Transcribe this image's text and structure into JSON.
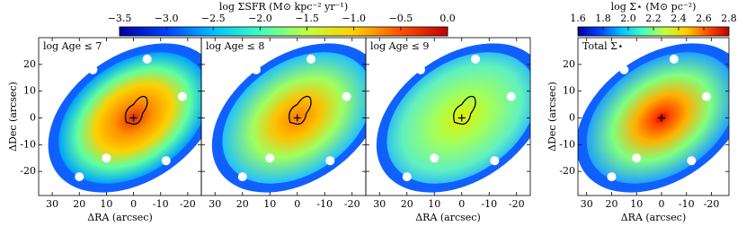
{
  "chart_data": [
    {
      "type": "colorbar",
      "label": "log ΣSFR (M⊙ kpc⁻² yr⁻¹)",
      "xlim": [
        -3.5,
        0.0
      ],
      "xticks": [
        {
          "value": -3.5,
          "label": "−3.5"
        },
        {
          "value": -3.0,
          "label": "−3.0"
        },
        {
          "value": -2.5,
          "label": "−2.5"
        },
        {
          "value": -2.0,
          "label": "−2.0"
        },
        {
          "value": -1.5,
          "label": "−1.5"
        },
        {
          "value": -1.0,
          "label": "−1.0"
        },
        {
          "value": -0.5,
          "label": "−0.5"
        },
        {
          "value": 0.0,
          "label": "0.0"
        }
      ],
      "colors": [
        "#0000a0",
        "#0040ff",
        "#00c0ff",
        "#40ffc0",
        "#c0ff40",
        "#ffd000",
        "#ff5000",
        "#c00000"
      ]
    },
    {
      "type": "colorbar",
      "label": "log Σ⋆ (M⊙ pc⁻²)",
      "xlim": [
        1.6,
        2.8
      ],
      "xticks": [
        1.6,
        1.8,
        {
          "value": 2.0,
          "label": "2.0"
        },
        2.2,
        2.4,
        2.6,
        2.8
      ],
      "colors": [
        "#0000a0",
        "#0040ff",
        "#00c0ff",
        "#40ffc0",
        "#c0ff40",
        "#ffd000",
        "#ff5000",
        "#c00000"
      ]
    },
    {
      "type": "map",
      "title": "log Age ≤ 7",
      "xlabel": "ΔRA (arcsec)",
      "ylabel": "ΔDec (arcsec)",
      "xlim": [
        35,
        -25
      ],
      "ylim": [
        -29,
        30
      ],
      "xticks": [
        30,
        20,
        10,
        0,
        -10,
        -20
      ],
      "yticks": [
        -20,
        -10,
        0,
        10,
        20
      ]
    },
    {
      "type": "map",
      "title": "log Age ≤ 8",
      "xlim": [
        35,
        -25
      ],
      "ylim": [
        -29,
        30
      ],
      "xticks": [
        30,
        20,
        10,
        0,
        -10,
        -20
      ],
      "yticks": [
        -20,
        -10,
        0,
        10,
        20
      ]
    },
    {
      "type": "map",
      "title": "log Age ≤ 9",
      "xlabel": "ΔRA (arcsec)",
      "xlim": [
        35,
        -25
      ],
      "ylim": [
        -29,
        30
      ],
      "xticks": [
        30,
        20,
        10,
        0,
        -10,
        -20
      ],
      "yticks": [
        -20,
        -10,
        0,
        10,
        20
      ]
    },
    {
      "type": "map",
      "title": "Total Σ⋆",
      "xlabel": "ΔRA (arcsec)",
      "ylabel": "ΔDec (arcsec)",
      "xlim": [
        33.5,
        -27
      ],
      "ylim": [
        -29,
        30
      ],
      "xticks": [
        30,
        20,
        10,
        0,
        -10,
        -20
      ],
      "yticks": [
        -20,
        -10,
        0,
        10,
        20
      ]
    }
  ]
}
